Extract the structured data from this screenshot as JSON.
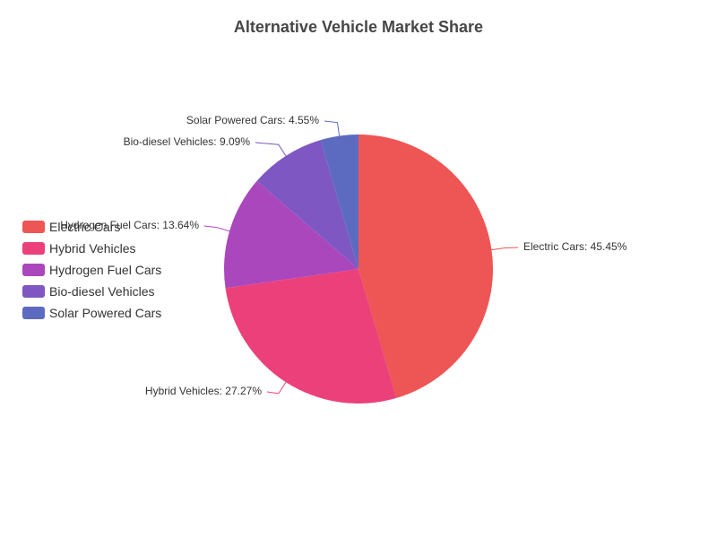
{
  "chart_data": {
    "type": "pie",
    "title": "Alternative Vehicle Market Share",
    "slices": [
      {
        "name": "Electric Cars",
        "value": 45.45,
        "label": "Electric Cars: 45.45%",
        "color": "#ee5555"
      },
      {
        "name": "Hybrid Vehicles",
        "value": 27.27,
        "label": "Hybrid Vehicles: 27.27%",
        "color": "#ec407a"
      },
      {
        "name": "Hydrogen Fuel Cars",
        "value": 13.64,
        "label": "Hydrogen Fuel Cars: 13.64%",
        "color": "#ab47bc"
      },
      {
        "name": "Bio-diesel Vehicles",
        "value": 9.09,
        "label": "Bio-diesel Vehicles: 9.09%",
        "color": "#7e57c2"
      },
      {
        "name": "Solar Powered Cars",
        "value": 4.55,
        "label": "Solar Powered Cars: 4.55%",
        "color": "#5c6bc0"
      }
    ],
    "legend_position": "left"
  }
}
